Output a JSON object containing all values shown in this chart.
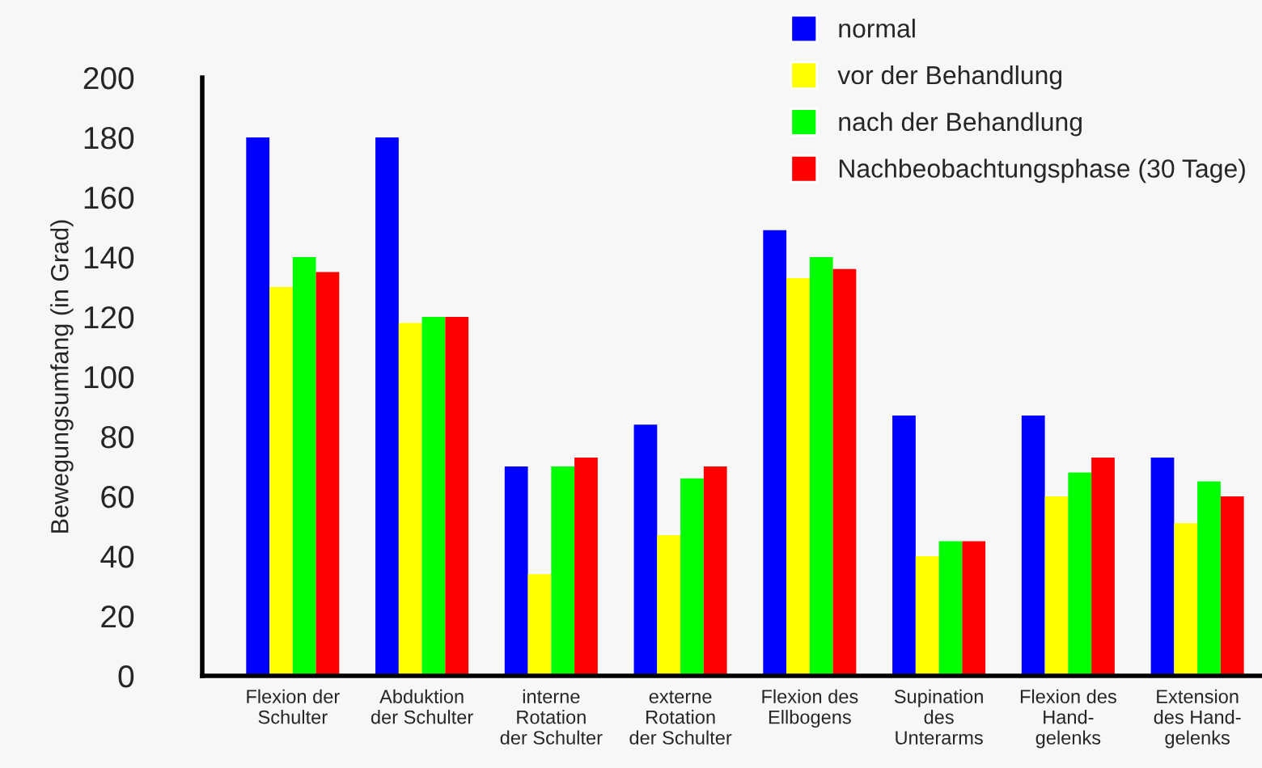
{
  "chart_data": {
    "type": "bar",
    "ylabel": "Bewegungsumfang (in Grad)",
    "categories": [
      "Flexion der\nSchulter",
      "Abduktion\nder Schulter",
      "interne\nRotation\nder Schulter",
      "externe\nRotation\nder Schulter",
      "Flexion des\nEllbogens",
      "Supination\ndes\nUnterarms",
      "Flexion des\nHand-\ngelenks",
      "Extension\ndes Hand-\ngelenks"
    ],
    "series": [
      {
        "name": "normal",
        "color": "#0000ff",
        "values": [
          180,
          180,
          70,
          84,
          149,
          87,
          87,
          73
        ]
      },
      {
        "name": "vor der Behandlung",
        "color": "#ffff00",
        "values": [
          130,
          118,
          34,
          47,
          133,
          40,
          60,
          51
        ]
      },
      {
        "name": "nach der Behandlung",
        "color": "#00ff00",
        "values": [
          140,
          120,
          70,
          66,
          140,
          45,
          68,
          65
        ]
      },
      {
        "name": "Nachbeobachtungsphase (30 Tage)",
        "color": "#ff0000",
        "values": [
          135,
          120,
          73,
          70,
          136,
          45,
          73,
          60
        ]
      }
    ],
    "ylim": [
      0,
      200
    ],
    "yticks": [
      0,
      20,
      40,
      60,
      80,
      100,
      120,
      140,
      160,
      180,
      200
    ],
    "grid": false,
    "legend": "top right"
  }
}
